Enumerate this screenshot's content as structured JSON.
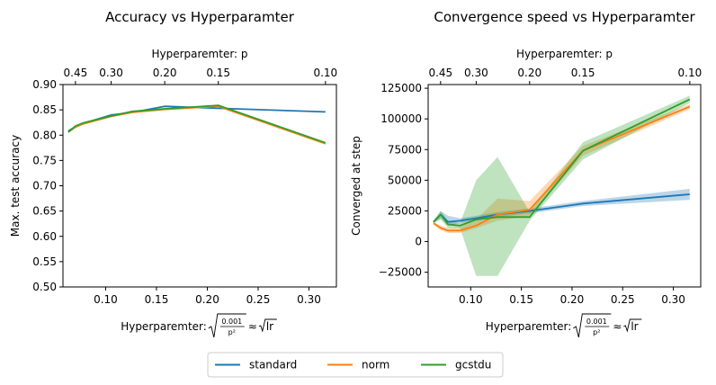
{
  "colors": {
    "standard": "#1f77b4",
    "norm": "#ff7f0e",
    "gcstdu": "#2ca02c"
  },
  "legend": {
    "placement": "bottom-center",
    "entries": [
      "standard",
      "norm",
      "gcstdu"
    ]
  },
  "chart_data": [
    {
      "type": "line",
      "title": "Accuracy vs Hyperparamter",
      "xlabel": "Hyperparemter: √(0.001/p²) ≈ √lr",
      "xlabel_parts": {
        "prefix": "Hyperparemter: ",
        "num": "0.001",
        "den": "p²",
        "approx": "≈",
        "lr": "lr"
      },
      "ylabel": "Max. test accuracy",
      "top_axis_label": "Hyperparemter: p",
      "xlim": [
        0.058,
        0.327
      ],
      "ylim": [
        0.5,
        0.9
      ],
      "xticks": [
        0.1,
        0.15,
        0.2,
        0.25,
        0.3
      ],
      "xtick_labels": [
        "0.10",
        "0.15",
        "0.20",
        "0.25",
        "0.30"
      ],
      "yticks": [
        0.5,
        0.55,
        0.6,
        0.65,
        0.7,
        0.75,
        0.8,
        0.85,
        0.9
      ],
      "ytick_labels": [
        "0.50",
        "0.55",
        "0.60",
        "0.65",
        "0.70",
        "0.75",
        "0.80",
        "0.85",
        "0.90"
      ],
      "top_ticks": [
        0.45,
        0.3,
        0.2,
        0.15,
        0.1
      ],
      "top_tick_labels": [
        "0.45",
        "0.30",
        "0.20",
        "0.15",
        "0.10"
      ],
      "grid": false,
      "x": [
        0.0632,
        0.0704,
        0.0775,
        0.1054,
        0.1265,
        0.1581,
        0.2108,
        0.3162
      ],
      "series": [
        {
          "name": "standard",
          "values": [
            0.808,
            0.817,
            0.823,
            0.84,
            0.845,
            0.857,
            0.853,
            0.846
          ]
        },
        {
          "name": "norm",
          "values": [
            0.806,
            0.816,
            0.822,
            0.837,
            0.845,
            0.851,
            0.857,
            0.783
          ]
        },
        {
          "name": "gcstdu",
          "values": [
            0.806,
            0.818,
            0.824,
            0.838,
            0.847,
            0.852,
            0.859,
            0.785
          ]
        }
      ]
    },
    {
      "type": "line",
      "title": "Convergence speed vs Hyperparamter",
      "xlabel": "Hyperparemter: √(0.001/p²) ≈ √lr",
      "xlabel_parts": {
        "prefix": "Hyperparemter: ",
        "num": "0.001",
        "den": "p²",
        "approx": "≈",
        "lr": "lr"
      },
      "ylabel": "Converged at step",
      "top_axis_label": "Hyperparemter: p",
      "xlim": [
        0.058,
        0.327
      ],
      "ylim": [
        -37000,
        128000
      ],
      "xticks": [
        0.1,
        0.15,
        0.2,
        0.25,
        0.3
      ],
      "xtick_labels": [
        "0.10",
        "0.15",
        "0.20",
        "0.25",
        "0.30"
      ],
      "yticks": [
        -25000,
        0,
        25000,
        50000,
        75000,
        100000,
        125000
      ],
      "ytick_labels": [
        "−25000",
        "0",
        "25000",
        "50000",
        "75000",
        "100000",
        "125000"
      ],
      "top_ticks": [
        0.45,
        0.3,
        0.2,
        0.15,
        0.1
      ],
      "top_tick_labels": [
        "0.45",
        "0.30",
        "0.20",
        "0.15",
        "0.10"
      ],
      "grid": false,
      "x": [
        0.0632,
        0.0704,
        0.0775,
        0.0894,
        0.1054,
        0.1265,
        0.1581,
        0.2108,
        0.3162
      ],
      "series": [
        {
          "name": "standard",
          "values": [
            16000,
            22000,
            16000,
            17000,
            19000,
            22000,
            25000,
            31000,
            38500
          ],
          "lower": [
            15000,
            19000,
            13000,
            15000,
            17000,
            20000,
            23000,
            29000,
            34000
          ],
          "upper": [
            17000,
            25000,
            21000,
            19000,
            21000,
            24000,
            27000,
            33000,
            43000
          ]
        },
        {
          "name": "norm",
          "values": [
            15000,
            11000,
            9000,
            9000,
            13000,
            22000,
            26000,
            74000,
            110000
          ],
          "lower": [
            14000,
            9000,
            7000,
            7000,
            11000,
            17000,
            21000,
            70000,
            108000
          ],
          "upper": [
            16000,
            13000,
            11000,
            12000,
            18000,
            35000,
            33000,
            78000,
            112000
          ]
        },
        {
          "name": "gcstdu",
          "values": [
            16000,
            22000,
            14000,
            13000,
            18000,
            20000,
            20000,
            74000,
            116000
          ],
          "lower": [
            15000,
            18000,
            11000,
            11000,
            -28000,
            -28000,
            17000,
            67000,
            113000
          ],
          "upper": [
            17000,
            25000,
            17000,
            15000,
            50000,
            69000,
            24000,
            81000,
            119000
          ]
        }
      ]
    }
  ]
}
